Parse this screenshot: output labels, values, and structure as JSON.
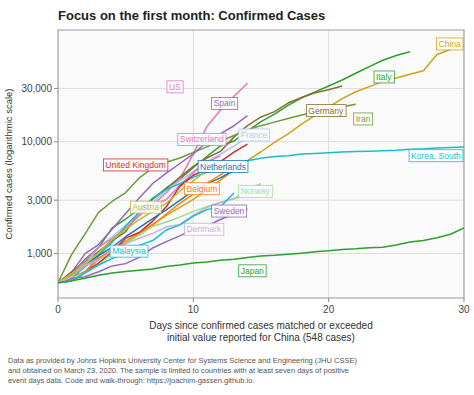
{
  "chart_data": {
    "type": "line",
    "title": "Focus on the first month: Confirmed Cases",
    "ylabel": "Confirmed cases (logarithmic scale)",
    "xlabel": [
      "Days since confirmed cases matched or exceeded",
      "initial value reported for China (548 cases)"
    ],
    "footnote": [
      "Data as provided by Johns Hopkins University Center for Systems Science and Engineering (JHU CSSE)",
      "and obtained on March 23, 2020. The sample is limited to countries with at least seven days of positive",
      "event days data. Code and walk-through: https://joachim-gassen.github.io."
    ],
    "log": "y",
    "grid": true,
    "xlim": [
      0,
      30
    ],
    "xticks": [
      0,
      10,
      20,
      30
    ],
    "ylim": [
      400,
      100000
    ],
    "yticks": [
      {
        "value": 1000,
        "label": "1,000"
      },
      {
        "value": 3000,
        "label": "3,000"
      },
      {
        "value": 10000,
        "label": "10,000"
      },
      {
        "value": 30000,
        "label": "30,000"
      }
    ],
    "series": [
      {
        "name": "China",
        "color": "#d4a017",
        "x": [
          0,
          1,
          2,
          3,
          4,
          5,
          6,
          7,
          8,
          9,
          10,
          11,
          12,
          13,
          14,
          15,
          16,
          17,
          18,
          19,
          20,
          21,
          22,
          23,
          24,
          25,
          26,
          27,
          28,
          29,
          30
        ],
        "values": [
          548,
          641,
          771,
          916,
          1072,
          1294,
          1533,
          1833,
          2191,
          2589,
          3054,
          3691,
          4538,
          5578,
          6790,
          8141,
          9884,
          11791,
          14380,
          17205,
          20438,
          24324,
          28018,
          31161,
          34546,
          37198,
          40171,
          43099,
          60318,
          66887,
          72314
        ]
      },
      {
        "name": "Italy",
        "color": "#2ca02c",
        "x": [
          0,
          1,
          2,
          3,
          4,
          5,
          6,
          7,
          8,
          9,
          10,
          11,
          12,
          13,
          14,
          15,
          16,
          17,
          18,
          19,
          20,
          21,
          22,
          23,
          24,
          25,
          26
        ],
        "values": [
          548,
          655,
          888,
          1128,
          1694,
          2036,
          2502,
          3089,
          3858,
          4636,
          5883,
          7375,
          9172,
          10149,
          12462,
          15113,
          17660,
          21157,
          24747,
          27980,
          31506,
          35713,
          41035,
          47021,
          53578,
          59138,
          63927
        ]
      },
      {
        "name": "US",
        "color": "#e377c2",
        "x": [
          0,
          1,
          2,
          3,
          4,
          5,
          6,
          7,
          8,
          9,
          10,
          11,
          12,
          13,
          14
        ],
        "values": [
          548,
          598,
          681,
          959,
          1281,
          1663,
          2179,
          2727,
          3499,
          4661,
          7783,
          13677,
          19100,
          25489,
          33404
        ]
      },
      {
        "name": "Spain",
        "color": "#9467bd",
        "x": [
          0,
          1,
          2,
          3,
          4,
          5,
          6,
          7,
          8,
          9,
          10,
          11,
          12,
          13,
          14
        ],
        "values": [
          548,
          674,
          999,
          1204,
          1646,
          2277,
          3146,
          4231,
          5232,
          6391,
          7798,
          9942,
          11748,
          13910,
          17147
        ]
      },
      {
        "name": "Germany",
        "color": "#8c6d31",
        "x": [
          0,
          1,
          2,
          3,
          4,
          5,
          6,
          7,
          8,
          9,
          10,
          11,
          12,
          13,
          14,
          15,
          16,
          17,
          18,
          19,
          20,
          21
        ],
        "values": [
          548,
          684,
          847,
          1040,
          1296,
          1567,
          2369,
          3062,
          3795,
          4838,
          6012,
          7156,
          8198,
          10999,
          13957,
          16662,
          18610,
          22213,
          24873,
          27436,
          29212,
          31554
        ]
      },
      {
        "name": "Iran",
        "color": "#6b9a3e",
        "x": [
          0,
          1,
          2,
          3,
          4,
          5,
          6,
          7,
          8,
          9,
          10,
          11,
          12,
          13,
          14,
          15,
          16,
          17,
          18,
          19,
          20,
          21,
          22
        ],
        "values": [
          548,
          978,
          1501,
          2336,
          2922,
          3513,
          4747,
          5823,
          6566,
          7161,
          8042,
          9000,
          10075,
          11364,
          12729,
          13938,
          14991,
          16169,
          17361,
          18407,
          19644,
          20610,
          21638
        ]
      },
      {
        "name": "France",
        "color": "#aec7e8",
        "x": [
          0,
          1,
          2,
          3,
          4,
          5,
          6,
          7,
          8,
          9,
          10,
          11,
          12,
          13,
          14
        ],
        "values": [
          548,
          656,
          793,
          1126,
          1412,
          1784,
          2281,
          2876,
          3661,
          4469,
          5423,
          6633,
          7730,
          9134,
          10995
        ]
      },
      {
        "name": "Switzerland",
        "color": "#e377c2",
        "x": [
          0,
          1,
          2,
          3,
          4,
          5,
          6,
          7,
          8,
          9,
          10,
          11,
          12
        ],
        "values": [
          548,
          652,
          858,
          1139,
          1359,
          1678,
          2200,
          2742,
          3028,
          4075,
          5294,
          6575,
          7474
        ]
      },
      {
        "name": "Korea, South",
        "color": "#17becf",
        "x": [
          0,
          1,
          2,
          3,
          4,
          5,
          6,
          7,
          8,
          9,
          10,
          11,
          12,
          13,
          14,
          15,
          16,
          17,
          18,
          19,
          20,
          21,
          22,
          23,
          24,
          25,
          26,
          27,
          28,
          29,
          30
        ],
        "values": [
          548,
          602,
          763,
          977,
          1261,
          1766,
          2337,
          3150,
          3736,
          4212,
          4812,
          5328,
          5766,
          6284,
          6767,
          7134,
          7382,
          7513,
          7755,
          7869,
          7979,
          8086,
          8162,
          8236,
          8320,
          8413,
          8565,
          8652,
          8799,
          8897,
          8961
        ]
      },
      {
        "name": "United Kingdom",
        "color": "#d62728",
        "x": [
          0,
          1,
          2,
          3,
          4,
          5,
          6,
          7,
          8,
          9,
          10,
          11,
          12,
          13,
          14
        ],
        "values": [
          548,
          590,
          688,
          821,
          1035,
          1372,
          1543,
          1950,
          2626,
          3983,
          5018,
          5683,
          6650,
          8077,
          9529
        ]
      },
      {
        "name": "Netherlands",
        "color": "#1f77b4",
        "x": [
          0,
          1,
          2,
          3,
          4,
          5,
          6,
          7,
          8,
          9,
          10,
          11,
          12,
          13
        ],
        "values": [
          548,
          614,
          804,
          960,
          1135,
          1413,
          1708,
          2051,
          2460,
          2994,
          3640,
          4204,
          4749,
          5560
        ]
      },
      {
        "name": "Belgium",
        "color": "#ff7f0e",
        "x": [
          0,
          1,
          2,
          3,
          4,
          5,
          6,
          7,
          8,
          9,
          10,
          11,
          12,
          13
        ],
        "values": [
          548,
          614,
          689,
          886,
          1085,
          1243,
          1486,
          1795,
          2257,
          2815,
          3401,
          4269,
          5049,
          6235
        ]
      },
      {
        "name": "Austria",
        "color": "#bcbd22",
        "x": [
          0,
          1,
          2,
          3,
          4,
          5,
          6,
          7,
          8,
          9,
          10,
          11,
          12
        ],
        "values": [
          548,
          655,
          798,
          1016,
          1332,
          1646,
          2013,
          2388,
          2814,
          3611,
          4474,
          5560,
          6398
        ]
      },
      {
        "name": "Norway",
        "color": "#98df8a",
        "x": [
          0,
          1,
          2,
          3,
          4,
          5,
          6,
          7,
          8,
          9,
          10,
          11,
          12,
          13,
          14,
          15
        ],
        "values": [
          548,
          598,
          673,
          789,
          996,
          1231,
          1463,
          1746,
          1914,
          2118,
          2383,
          2621,
          2863,
          3084,
          3755,
          4226
        ]
      },
      {
        "name": "Sweden",
        "color": "#9467bd",
        "x": [
          0,
          1,
          2,
          3,
          4,
          5,
          6,
          7,
          8,
          9,
          10,
          11,
          12,
          13,
          14
        ],
        "values": [
          548,
          599,
          620,
          687,
          775,
          812,
          924,
          1121,
          1279,
          1439,
          1639,
          1763,
          2016,
          2272,
          2510
        ]
      },
      {
        "name": "Denmark",
        "color": "#c5b0d5",
        "x": [
          0,
          1,
          2,
          3,
          4,
          5,
          6,
          7,
          8,
          9,
          10,
          11,
          12,
          13,
          14
        ],
        "values": [
          548,
          617,
          785,
          875,
          1057,
          1225,
          1370,
          1514,
          1724,
          1819,
          2201,
          2577,
          2860,
          3107,
          3290
        ]
      },
      {
        "name": "Malaysia",
        "color": "#17becf",
        "x": [
          0,
          1,
          2,
          3,
          4,
          5,
          6,
          7,
          8,
          9,
          10,
          11,
          12,
          13
        ],
        "values": [
          548,
          566,
          673,
          790,
          900,
          1030,
          1183,
          1306,
          1624,
          1796,
          2161,
          2470,
          2626,
          3483
        ]
      },
      {
        "name": "Japan",
        "color": "#2ca02c",
        "x": [
          0,
          1,
          2,
          3,
          4,
          5,
          6,
          7,
          8,
          9,
          10,
          11,
          12,
          13,
          14,
          15,
          16,
          17,
          18,
          19,
          20,
          21,
          22,
          23,
          24,
          25,
          26,
          27,
          28,
          29,
          30
        ],
        "values": [
          548,
          570,
          601,
          639,
          669,
          691,
          709,
          727,
          765,
          791,
          823,
          839,
          872,
          889,
          920,
          949,
          963,
          984,
          1007,
          1036,
          1057,
          1086,
          1101,
          1128,
          1140,
          1193,
          1268,
          1307,
          1387,
          1488,
          1693
        ]
      }
    ],
    "annotations": [
      {
        "text": "China",
        "x": 29.5,
        "y": 75000
      },
      {
        "text": "Italy",
        "x": 23.5,
        "y": 38000
      },
      {
        "text": "US",
        "x": 8.2,
        "y": 31000
      },
      {
        "text": "Spain",
        "x": 11.5,
        "y": 22000
      },
      {
        "text": "Germany",
        "x": 18.5,
        "y": 19000
      },
      {
        "text": "Iran",
        "x": 22,
        "y": 16000
      },
      {
        "text": "France",
        "x": 13.5,
        "y": 11500
      },
      {
        "text": "Switzerland",
        "x": 9.0,
        "y": 10500
      },
      {
        "text": "Korea, South",
        "x": 28.5,
        "y": 7500
      },
      {
        "text": "United Kingdom",
        "x": 3.5,
        "y": 6200
      },
      {
        "text": "Netherlands",
        "x": 10.5,
        "y": 6000
      },
      {
        "text": "Belgium",
        "x": 9.5,
        "y": 3800
      },
      {
        "text": "Austria",
        "x": 5.5,
        "y": 2600
      },
      {
        "text": "Norway",
        "x": 13.5,
        "y": 3600
      },
      {
        "text": "Sweden",
        "x": 11.5,
        "y": 2400
      },
      {
        "text": "Denmark",
        "x": 9.5,
        "y": 1650
      },
      {
        "text": "Malaysia",
        "x": 4.0,
        "y": 1050
      },
      {
        "text": "Japan",
        "x": 13.5,
        "y": 700
      }
    ]
  }
}
